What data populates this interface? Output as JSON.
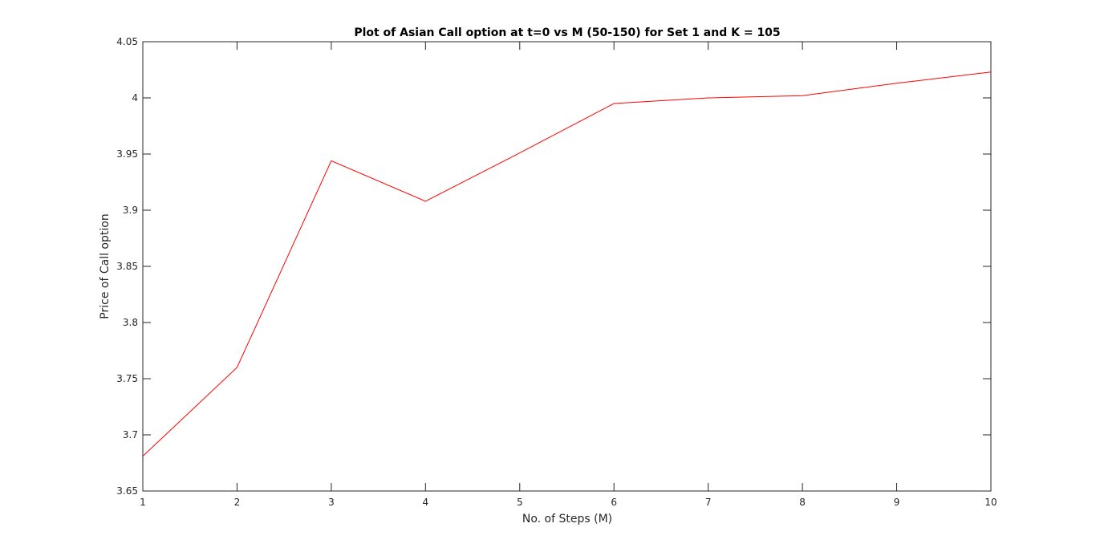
{
  "chart_data": {
    "type": "line",
    "title": "Plot of Asian Call option at t=0 vs M (50-150) for Set 1 and K = 105",
    "xlabel": "No. of Steps (M)",
    "ylabel": "Price of Call option",
    "xlim": [
      1,
      10
    ],
    "ylim": [
      3.65,
      4.05
    ],
    "xticks": [
      1,
      2,
      3,
      4,
      5,
      6,
      7,
      8,
      9,
      10
    ],
    "xtick_labels": [
      "1",
      "2",
      "3",
      "4",
      "5",
      "6",
      "7",
      "8",
      "9",
      "10"
    ],
    "yticks": [
      3.65,
      3.7,
      3.75,
      3.8,
      3.85,
      3.9,
      3.95,
      4.0,
      4.05
    ],
    "ytick_labels": [
      "3.65",
      "3.7",
      "3.75",
      "3.8",
      "3.85",
      "3.9",
      "3.95",
      "4",
      "4.05"
    ],
    "grid": false,
    "series": [
      {
        "color": "#ff0000",
        "x": [
          1,
          2,
          3,
          4,
          5,
          6,
          7,
          8,
          9,
          10
        ],
        "values": [
          3.681,
          3.76,
          3.944,
          3.908,
          3.951,
          3.995,
          4.0,
          4.002,
          4.013,
          4.023
        ]
      }
    ]
  }
}
